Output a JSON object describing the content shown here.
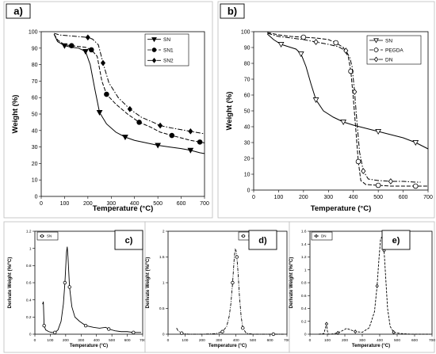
{
  "chart_data": [
    {
      "panel": "a)",
      "type": "line",
      "xlabel": "Temperature (°C)",
      "ylabel": "Weight (%)",
      "xlim": [
        0,
        700
      ],
      "ylim": [
        0,
        100
      ],
      "xticks": [
        0,
        100,
        200,
        300,
        400,
        500,
        600,
        700
      ],
      "yticks": [
        0,
        10,
        20,
        30,
        40,
        50,
        60,
        70,
        80,
        90,
        100
      ],
      "legend_position": "top-right",
      "series": [
        {
          "name": "SN",
          "marker": "triangle-down",
          "dash": "solid",
          "x": [
            55,
            70,
            100,
            130,
            160,
            190,
            210,
            230,
            250,
            280,
            320,
            360,
            400,
            450,
            500,
            550,
            600,
            640,
            680,
            700
          ],
          "y": [
            98.5,
            94,
            91.5,
            90.5,
            90,
            88,
            80,
            65,
            51,
            44,
            39,
            36,
            34,
            32.5,
            31,
            30,
            29,
            28,
            26.5,
            26
          ]
        },
        {
          "name": "SN1",
          "marker": "circle",
          "dash": "dashed",
          "x": [
            55,
            70,
            100,
            130,
            160,
            190,
            215,
            240,
            260,
            280,
            320,
            370,
            420,
            470,
            510,
            560,
            600,
            640,
            680,
            700
          ],
          "y": [
            98.5,
            95,
            92,
            91.5,
            91,
            90.5,
            89,
            85,
            70,
            62,
            56,
            50,
            45,
            42,
            39,
            37,
            35.5,
            34,
            33,
            32.5
          ]
        },
        {
          "name": "SN2",
          "marker": "diamond",
          "dash": "dashdot",
          "x": [
            55,
            80,
            120,
            160,
            200,
            220,
            245,
            265,
            290,
            330,
            380,
            430,
            480,
            510,
            560,
            600,
            640,
            680,
            700
          ],
          "y": [
            99,
            98,
            97.5,
            97,
            96.5,
            95.5,
            92,
            81,
            69,
            60,
            53,
            48,
            45,
            43,
            41.5,
            40.5,
            39.5,
            38.5,
            38
          ]
        }
      ]
    },
    {
      "panel": "b)",
      "type": "line",
      "xlabel": "Temperature (°C)",
      "ylabel": "Weight (%)",
      "xlim": [
        0,
        700
      ],
      "ylim": [
        0,
        100
      ],
      "xticks": [
        0,
        100,
        200,
        300,
        400,
        500,
        600,
        700
      ],
      "yticks": [
        0,
        10,
        20,
        30,
        40,
        50,
        60,
        70,
        80,
        90,
        100
      ],
      "legend_position": "top-right",
      "series": [
        {
          "name": "SN",
          "marker": "triangle-down-open",
          "dash": "solid",
          "x": [
            55,
            80,
            110,
            140,
            170,
            190,
            210,
            230,
            250,
            280,
            320,
            360,
            400,
            450,
            500,
            550,
            600,
            650,
            700
          ],
          "y": [
            98.5,
            95,
            92,
            90.5,
            89,
            86,
            78,
            67,
            57,
            50,
            46,
            43,
            41,
            39,
            37,
            35,
            33,
            30,
            26
          ]
        },
        {
          "name": "PEGDA",
          "marker": "circle-open",
          "dash": "dashed",
          "x": [
            55,
            100,
            150,
            200,
            250,
            300,
            330,
            360,
            380,
            390,
            400,
            410,
            420,
            430,
            450,
            500,
            550,
            600,
            650,
            700
          ],
          "y": [
            99.5,
            98,
            97,
            96.5,
            96,
            95,
            93,
            90,
            84,
            75,
            58,
            38,
            18,
            6,
            3.5,
            3,
            2.5,
            2.5,
            2.5,
            2.5
          ]
        },
        {
          "name": "DN",
          "marker": "diamond-open",
          "dash": "dashdot",
          "x": [
            55,
            100,
            150,
            200,
            250,
            300,
            340,
            370,
            385,
            395,
            405,
            415,
            425,
            440,
            460,
            500,
            550,
            600,
            650,
            670
          ],
          "y": [
            99,
            97,
            96,
            95,
            93.5,
            92,
            90.5,
            88,
            84,
            78,
            62,
            42,
            24,
            12,
            7,
            6,
            5.5,
            5.5,
            5,
            5
          ]
        }
      ]
    },
    {
      "panel": "c)",
      "type": "line",
      "xlabel": "Temperature (°C)",
      "ylabel": "Derivate Weight (%/°C)",
      "xlim": [
        0,
        700
      ],
      "ylim": [
        0,
        1.2
      ],
      "xticks": [
        0,
        100,
        200,
        300,
        400,
        500,
        600,
        700
      ],
      "yticks": [
        0,
        0.2,
        0.4,
        0.6,
        0.8,
        1,
        1.2
      ],
      "legend_position": "top-left",
      "series": [
        {
          "name": "SN",
          "marker": "circle-open",
          "dash": "solid",
          "x": [
            50,
            55,
            60,
            70,
            90,
            110,
            130,
            150,
            170,
            185,
            195,
            205,
            210,
            215,
            225,
            240,
            260,
            290,
            330,
            380,
            420,
            460,
            480,
            520,
            560,
            600,
            640,
            690
          ],
          "y": [
            0.35,
            0.38,
            0.1,
            0.05,
            0.03,
            0.02,
            0.02,
            0.05,
            0.15,
            0.35,
            0.6,
            0.95,
            1.02,
            0.9,
            0.55,
            0.32,
            0.2,
            0.15,
            0.1,
            0.08,
            0.07,
            0.08,
            0.06,
            0.04,
            0.03,
            0.03,
            0.02,
            0.02
          ]
        }
      ]
    },
    {
      "panel": "d)",
      "type": "line",
      "xlabel": "Temperature (°C)",
      "ylabel": "Derivate Weight (%/°C)",
      "xlim": [
        0,
        700
      ],
      "ylim": [
        0,
        2
      ],
      "xticks": [
        0,
        100,
        200,
        300,
        400,
        500,
        600,
        700
      ],
      "yticks": [
        0,
        0.5,
        1,
        1.5,
        2
      ],
      "legend_position": "top-right",
      "series": [
        {
          "name": "PEGDA",
          "marker": "circle-open",
          "dash": "dashdot",
          "x": [
            50,
            60,
            80,
            120,
            200,
            280,
            320,
            345,
            360,
            370,
            380,
            390,
            395,
            400,
            405,
            412,
            420,
            430,
            440,
            460,
            500,
            560,
            620,
            680
          ],
          "y": [
            0.12,
            0.06,
            0.02,
            0.0,
            0.0,
            0.01,
            0.05,
            0.15,
            0.35,
            0.6,
            1.0,
            1.5,
            1.65,
            1.63,
            1.5,
            1.2,
            0.75,
            0.35,
            0.12,
            0.02,
            0.0,
            0.0,
            0.0,
            0.0
          ]
        }
      ]
    },
    {
      "panel": "e)",
      "type": "line",
      "xlabel": "Temperature (°C)",
      "ylabel": "Derivate Weight (%/°C)",
      "xlim": [
        0,
        700
      ],
      "ylim": [
        0,
        1.6
      ],
      "xticks": [
        0,
        100,
        200,
        300,
        400,
        500,
        600,
        700
      ],
      "yticks": [
        0,
        0.2,
        0.4,
        0.6,
        0.8,
        1,
        1.2,
        1.4,
        1.6
      ],
      "legend_position": "top-left",
      "series": [
        {
          "name": "DN",
          "marker": "diamond-open",
          "dash": "dashed",
          "x": [
            50,
            80,
            95,
            100,
            105,
            120,
            160,
            190,
            210,
            230,
            260,
            300,
            340,
            370,
            385,
            395,
            405,
            415,
            425,
            435,
            445,
            460,
            480,
            520,
            580,
            640,
            690
          ],
          "y": [
            0.0,
            0.01,
            0.16,
            0.05,
            0.0,
            0.0,
            0.02,
            0.06,
            0.09,
            0.07,
            0.04,
            0.03,
            0.1,
            0.35,
            0.75,
            1.15,
            1.48,
            1.52,
            1.3,
            0.85,
            0.4,
            0.12,
            0.03,
            0.01,
            0.0,
            0.0,
            0.0
          ]
        }
      ]
    }
  ]
}
